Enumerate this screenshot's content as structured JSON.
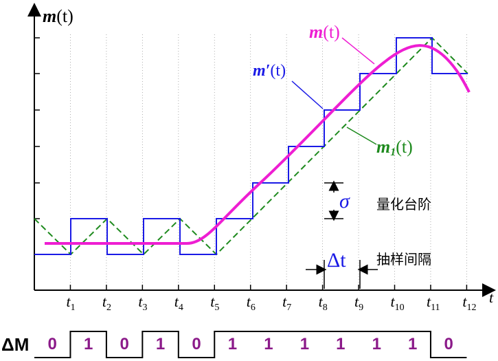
{
  "y_label": {
    "symbol": "m",
    "arg": "(t)"
  },
  "x_label": "t",
  "ticks": [
    {
      "symbol": "t",
      "subscript": "1"
    },
    {
      "symbol": "t",
      "subscript": "2"
    },
    {
      "symbol": "t",
      "subscript": "3"
    },
    {
      "symbol": "t",
      "subscript": "4"
    },
    {
      "symbol": "t",
      "subscript": "5"
    },
    {
      "symbol": "t",
      "subscript": "6"
    },
    {
      "symbol": "t",
      "subscript": "7"
    },
    {
      "symbol": "t",
      "subscript": "8"
    },
    {
      "symbol": "t",
      "subscript": "9"
    },
    {
      "symbol": "t",
      "subscript": "10"
    },
    {
      "symbol": "t",
      "subscript": "11"
    },
    {
      "symbol": "t",
      "subscript": "12"
    }
  ],
  "curve_labels": {
    "signal": {
      "symbol": "m",
      "arg": "(t)"
    },
    "staircase": {
      "symbol": "m′",
      "arg": "(t)"
    },
    "triangle": {
      "symbol": "m",
      "subscript": "1",
      "arg": "(t)"
    }
  },
  "step": {
    "symbol": "σ",
    "label": "量化台阶"
  },
  "interval": {
    "symbol": "Δt",
    "label": "抽样间隔"
  },
  "bits": {
    "label": "ΔM",
    "values": [
      "0",
      "1",
      "0",
      "1",
      "0",
      "1",
      "1",
      "1",
      "1",
      "1",
      "1",
      "0"
    ]
  }
}
